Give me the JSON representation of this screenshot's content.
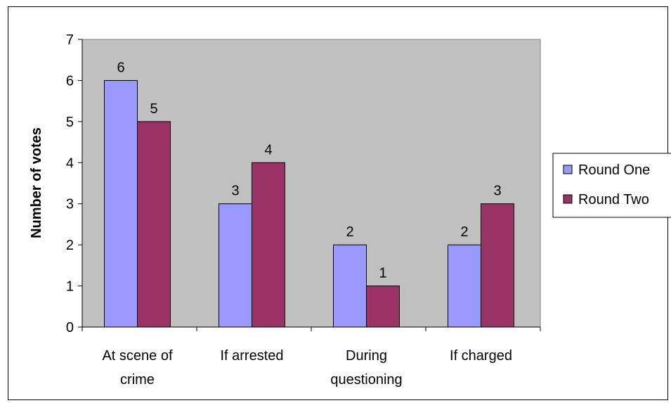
{
  "chart_data": {
    "type": "bar",
    "title": "",
    "xlabel": "",
    "ylabel": "Number of votes",
    "ylim": [
      0,
      7
    ],
    "yticks": [
      0,
      1,
      2,
      3,
      4,
      5,
      6,
      7
    ],
    "grid": false,
    "legend_position": "right",
    "plot_background": "#c0c0c0",
    "categories": [
      [
        "At scene of",
        "crime"
      ],
      [
        "If arrested"
      ],
      [
        "During",
        "questioning"
      ],
      [
        "If charged"
      ]
    ],
    "series": [
      {
        "name": "Round One",
        "color": "#9999ff",
        "values": [
          6,
          3,
          2,
          2
        ]
      },
      {
        "name": "Round Two",
        "color": "#993366",
        "values": [
          5,
          4,
          1,
          3
        ]
      }
    ]
  }
}
